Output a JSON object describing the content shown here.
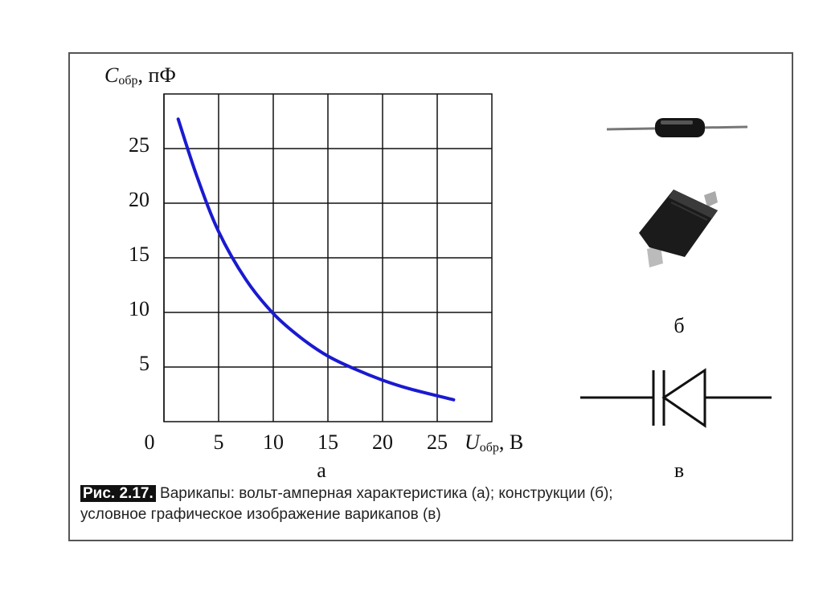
{
  "chart_data": {
    "type": "line",
    "ylabel": {
      "symbol": "C",
      "sub": "обр",
      "unit": ", пФ"
    },
    "xlabel": {
      "symbol": "U",
      "sub": "обр",
      "unit": ", В"
    },
    "xlim": [
      0,
      30
    ],
    "ylim": [
      0,
      30
    ],
    "xticks": [
      0,
      5,
      10,
      15,
      20,
      25
    ],
    "yticks": [
      5,
      10,
      15,
      20,
      25
    ],
    "grid": true,
    "series": [
      {
        "color": "#1a1ad0",
        "x": [
          1.3,
          3,
          5,
          7.5,
          10,
          12.5,
          15,
          17.5,
          20,
          22.5,
          26.5
        ],
        "values": [
          27.7,
          22.5,
          17.4,
          13,
          9.9,
          7.7,
          6.0,
          4.8,
          3.8,
          3.0,
          2.0
        ]
      }
    ],
    "panel_label": "а"
  },
  "panel_b_label": "б",
  "panel_c_label": "в",
  "caption": {
    "figure": "Рис. 2.17.",
    "line1": "Варикапы: вольт-амперная характеристика (а); конструкции (б);",
    "line2": "условное графическое изображение варикапов (в)"
  }
}
